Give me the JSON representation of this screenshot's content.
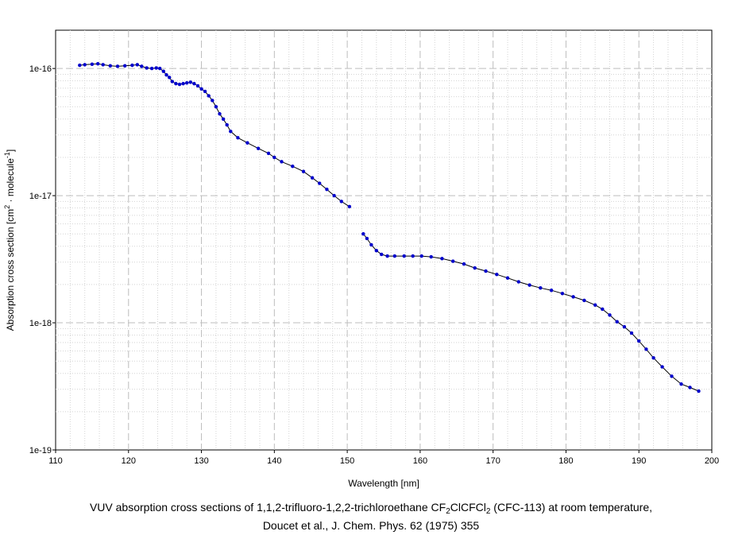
{
  "chart_data": {
    "type": "line",
    "xlabel": "Wavelength [nm]",
    "ylabel_parts": [
      "Absorption cross section [cm",
      "2",
      " · molecule",
      "-1",
      "]"
    ],
    "xlim": [
      110,
      200
    ],
    "ylim": [
      1e-19,
      2e-16
    ],
    "y_scale": "log",
    "x_ticks": [
      110,
      120,
      130,
      140,
      150,
      160,
      170,
      180,
      190,
      200
    ],
    "x_tick_labels": [
      "110",
      "120",
      "130",
      "140",
      "150",
      "160",
      "170",
      "180",
      "190",
      "200"
    ],
    "y_ticks": [
      1e-19,
      1e-18,
      1e-17,
      1e-16
    ],
    "y_tick_labels": [
      "1e-19",
      "1e-18",
      "1e-17",
      "1e-16"
    ],
    "grid": true,
    "line_color": "#000000",
    "marker_color": "#0000cc",
    "series": [
      {
        "segments": [
          [
            [
              113.3,
              1.06e-16
            ],
            [
              114.0,
              1.07e-16
            ],
            [
              115.0,
              1.08e-16
            ],
            [
              115.8,
              1.09e-16
            ],
            [
              116.5,
              1.07e-16
            ],
            [
              117.5,
              1.05e-16
            ],
            [
              118.5,
              1.04e-16
            ],
            [
              119.5,
              1.05e-16
            ],
            [
              120.5,
              1.06e-16
            ],
            [
              121.2,
              1.07e-16
            ],
            [
              121.8,
              1.04e-16
            ],
            [
              122.5,
              1.01e-16
            ],
            [
              123.2,
              1e-16
            ],
            [
              123.8,
              1.01e-16
            ],
            [
              124.3,
              1e-16
            ],
            [
              124.8,
              9.5e-17
            ],
            [
              125.2,
              8.9e-17
            ],
            [
              125.6,
              8.5e-17
            ],
            [
              126.0,
              7.9e-17
            ],
            [
              126.5,
              7.6e-17
            ],
            [
              127.0,
              7.5e-17
            ],
            [
              127.5,
              7.6e-17
            ],
            [
              128.0,
              7.7e-17
            ],
            [
              128.5,
              7.8e-17
            ],
            [
              129.0,
              7.6e-17
            ],
            [
              129.5,
              7.3e-17
            ],
            [
              130.0,
              6.9e-17
            ],
            [
              130.5,
              6.6e-17
            ],
            [
              131.0,
              6.1e-17
            ],
            [
              131.5,
              5.6e-17
            ],
            [
              132.0,
              5e-17
            ],
            [
              132.5,
              4.4e-17
            ],
            [
              133.0,
              4e-17
            ],
            [
              133.5,
              3.6e-17
            ],
            [
              134.0,
              3.2e-17
            ],
            [
              135.0,
              2.85e-17
            ],
            [
              136.3,
              2.6e-17
            ],
            [
              137.8,
              2.35e-17
            ],
            [
              139.2,
              2.15e-17
            ],
            [
              140.0,
              2e-17
            ],
            [
              141.0,
              1.85e-17
            ],
            [
              142.5,
              1.7e-17
            ],
            [
              144.0,
              1.55e-17
            ],
            [
              145.2,
              1.38e-17
            ],
            [
              146.2,
              1.25e-17
            ],
            [
              147.2,
              1.12e-17
            ],
            [
              148.2,
              1e-17
            ],
            [
              149.2,
              9e-18
            ],
            [
              150.3,
              8.2e-18
            ]
          ],
          [
            [
              152.2,
              5e-18
            ],
            [
              152.7,
              4.6e-18
            ],
            [
              153.3,
              4.1e-18
            ],
            [
              154.0,
              3.7e-18
            ],
            [
              154.7,
              3.45e-18
            ],
            [
              155.5,
              3.35e-18
            ],
            [
              156.5,
              3.35e-18
            ],
            [
              157.8,
              3.35e-18
            ],
            [
              159.0,
              3.35e-18
            ],
            [
              160.2,
              3.35e-18
            ],
            [
              161.5,
              3.3e-18
            ],
            [
              163.0,
              3.2e-18
            ],
            [
              164.5,
              3.05e-18
            ],
            [
              166.0,
              2.9e-18
            ],
            [
              167.5,
              2.7e-18
            ],
            [
              169.0,
              2.55e-18
            ],
            [
              170.5,
              2.4e-18
            ],
            [
              172.0,
              2.25e-18
            ],
            [
              173.5,
              2.1e-18
            ],
            [
              175.0,
              1.98e-18
            ],
            [
              176.5,
              1.88e-18
            ],
            [
              178.0,
              1.8e-18
            ],
            [
              179.5,
              1.7e-18
            ],
            [
              181.0,
              1.6e-18
            ],
            [
              182.5,
              1.5e-18
            ],
            [
              184.0,
              1.38e-18
            ],
            [
              185.0,
              1.28e-18
            ],
            [
              186.0,
              1.15e-18
            ],
            [
              187.0,
              1.02e-18
            ],
            [
              188.0,
              9.3e-19
            ],
            [
              189.0,
              8.3e-19
            ],
            [
              190.0,
              7.2e-19
            ],
            [
              191.0,
              6.2e-19
            ],
            [
              192.0,
              5.3e-19
            ],
            [
              193.2,
              4.5e-19
            ],
            [
              194.5,
              3.8e-19
            ],
            [
              195.8,
              3.3e-19
            ],
            [
              197.0,
              3.1e-19
            ],
            [
              198.2,
              2.9e-19
            ]
          ]
        ]
      }
    ]
  },
  "caption": {
    "line1_prefix": "VUV absorption cross sections of 1,1,2-trifluoro-1,2,2-trichloroethane CF",
    "line1_sub1": "2",
    "line1_mid": "ClCFCl",
    "line1_sub2": "2",
    "line1_suffix": " (CFC-113) at room temperature,",
    "line2": "Doucet et al., J. Chem. Phys. 62 (1975) 355"
  }
}
